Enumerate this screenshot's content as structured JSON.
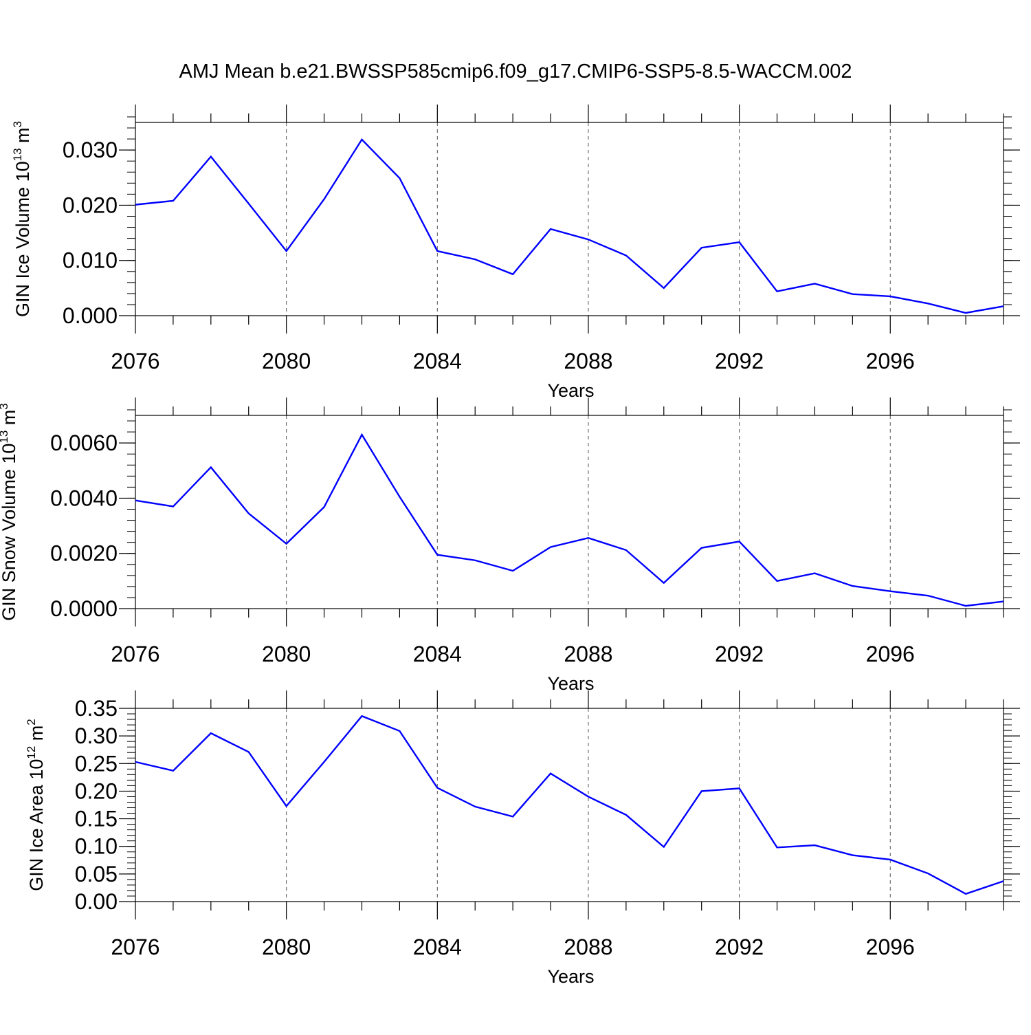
{
  "title": "AMJ Mean b.e21.BWSSP585cmip6.f09_g17.CMIP6-SSP5-8.5-WACCM.002",
  "colors": {
    "series": "#0000ff",
    "axis": "#000000",
    "grid": "#000000",
    "background": "#ffffff"
  },
  "chart_data": [
    {
      "type": "line",
      "title": "AMJ Mean b.e21.BWSSP585cmip6.f09_g17.CMIP6-SSP5-8.5-WACCM.002",
      "xlabel": "Years",
      "ylabel": {
        "base": "GIN Ice Volume 10",
        "exp": "13",
        "unit": " m",
        "unit_exp": "3"
      },
      "xlim": [
        2076,
        2099
      ],
      "ylim": [
        0,
        0.035
      ],
      "xticks": [
        2076,
        2080,
        2084,
        2088,
        2092,
        2096
      ],
      "xtick_labels": [
        "2076",
        "2080",
        "2084",
        "2088",
        "2092",
        "2096"
      ],
      "yticks": [
        0,
        0.01,
        0.02,
        0.03
      ],
      "ytick_labels": [
        "0.000",
        "0.010",
        "0.020",
        "0.030"
      ],
      "yminor_step": 0.002,
      "x": [
        2076,
        2077,
        2078,
        2079,
        2080,
        2081,
        2082,
        2083,
        2084,
        2085,
        2086,
        2087,
        2088,
        2089,
        2090,
        2091,
        2092,
        2093,
        2094,
        2095,
        2096,
        2097,
        2098,
        2099
      ],
      "series": [
        {
          "name": "GIN Ice Volume",
          "values": [
            0.0201,
            0.0208,
            0.0288,
            0.0203,
            0.0117,
            0.0211,
            0.0319,
            0.0249,
            0.0117,
            0.0102,
            0.0075,
            0.0157,
            0.0138,
            0.0109,
            0.005,
            0.0123,
            0.0133,
            0.0044,
            0.0058,
            0.0039,
            0.0035,
            0.0022,
            0.0005,
            0.0017
          ]
        }
      ]
    },
    {
      "type": "line",
      "xlabel": "Years",
      "ylabel": {
        "base": "GIN Snow Volume 10",
        "exp": "13",
        "unit": " m",
        "unit_exp": "3"
      },
      "xlim": [
        2076,
        2099
      ],
      "ylim": [
        0,
        0.007
      ],
      "xticks": [
        2076,
        2080,
        2084,
        2088,
        2092,
        2096
      ],
      "xtick_labels": [
        "2076",
        "2080",
        "2084",
        "2088",
        "2092",
        "2096"
      ],
      "yticks": [
        0,
        0.002,
        0.004,
        0.006
      ],
      "ytick_labels": [
        "0.0000",
        "0.0020",
        "0.0040",
        "0.0060"
      ],
      "yminor_step": 0.0004,
      "x": [
        2076,
        2077,
        2078,
        2079,
        2080,
        2081,
        2082,
        2083,
        2084,
        2085,
        2086,
        2087,
        2088,
        2089,
        2090,
        2091,
        2092,
        2093,
        2094,
        2095,
        2096,
        2097,
        2098,
        2099
      ],
      "series": [
        {
          "name": "GIN Snow Volume",
          "values": [
            0.00392,
            0.0037,
            0.00512,
            0.00345,
            0.00235,
            0.00368,
            0.0063,
            0.00405,
            0.00195,
            0.00175,
            0.00137,
            0.00223,
            0.00256,
            0.00212,
            0.00093,
            0.0022,
            0.00243,
            0.001,
            0.00128,
            0.00082,
            0.00063,
            0.00047,
            0.0001,
            0.00026
          ]
        }
      ]
    },
    {
      "type": "line",
      "xlabel": "Years",
      "ylabel": {
        "base": "GIN Ice Area 10",
        "exp": "12",
        "unit": " m",
        "unit_exp": "2"
      },
      "xlim": [
        2076,
        2099
      ],
      "ylim": [
        0,
        0.35
      ],
      "xticks": [
        2076,
        2080,
        2084,
        2088,
        2092,
        2096
      ],
      "xtick_labels": [
        "2076",
        "2080",
        "2084",
        "2088",
        "2092",
        "2096"
      ],
      "yticks": [
        0,
        0.05,
        0.1,
        0.15,
        0.2,
        0.25,
        0.3,
        0.35
      ],
      "ytick_labels": [
        "0.00",
        "0.05",
        "0.10",
        "0.15",
        "0.20",
        "0.25",
        "0.30",
        "0.35"
      ],
      "yminor_step": 0.01,
      "x": [
        2076,
        2077,
        2078,
        2079,
        2080,
        2081,
        2082,
        2083,
        2084,
        2085,
        2086,
        2087,
        2088,
        2089,
        2090,
        2091,
        2092,
        2093,
        2094,
        2095,
        2096,
        2097,
        2098,
        2099
      ],
      "series": [
        {
          "name": "GIN Ice Area",
          "values": [
            0.253,
            0.237,
            0.305,
            0.271,
            0.173,
            0.253,
            0.336,
            0.309,
            0.206,
            0.172,
            0.154,
            0.232,
            0.19,
            0.157,
            0.099,
            0.2,
            0.205,
            0.098,
            0.102,
            0.084,
            0.076,
            0.051,
            0.014,
            0.037
          ]
        }
      ]
    }
  ]
}
